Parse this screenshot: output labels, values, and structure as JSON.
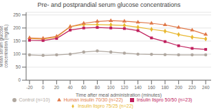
{
  "chart_data": {
    "type": "line",
    "title": "Pre- and postprandial serum glucose concentrations",
    "xlabel": "Time after meal administration (minutes)",
    "ylabel": "Mean serum glucose\nconcentration (mg/dL)",
    "x": [
      -20,
      0,
      20,
      40,
      60,
      80,
      100,
      120,
      140,
      160,
      180,
      200,
      220,
      240
    ],
    "series": [
      {
        "name": "Insulin lispro 75/25 (n=22)",
        "color": "#e8b830",
        "marker": "diamond",
        "values": [
          160,
          158,
          165,
          205,
          213,
          213,
          212,
          210,
          203,
          195,
          188,
          175,
          165,
          158
        ]
      },
      {
        "name": "Insulin lispro 50/50 (n=23)",
        "color": "#c0215e",
        "marker": "square",
        "values": [
          153,
          152,
          160,
          192,
          200,
          202,
          200,
          198,
          190,
          162,
          148,
          132,
          122,
          118
        ]
      },
      {
        "name": "Human insulin 70/30 (n=22)",
        "color": "#e07848",
        "marker": "triangle",
        "values": [
          162,
          160,
          168,
          205,
          218,
          225,
          228,
          226,
          222,
          218,
          212,
          202,
          192,
          175
        ]
      },
      {
        "name": "Control (n=10)",
        "color": "#b0a8a0",
        "marker": "circle",
        "values": [
          97,
          95,
          97,
          100,
          108,
          112,
          108,
          104,
          100,
          99,
          98,
          97,
          97,
          97
        ]
      }
    ],
    "xlim": [
      -25,
      248
    ],
    "xticks": [
      -20,
      0,
      20,
      40,
      60,
      80,
      100,
      120,
      140,
      160,
      180,
      200,
      220,
      240
    ],
    "ylim": [
      0,
      260
    ],
    "yticks": [
      0,
      50,
      100,
      150,
      200,
      250
    ],
    "grid": "y"
  }
}
